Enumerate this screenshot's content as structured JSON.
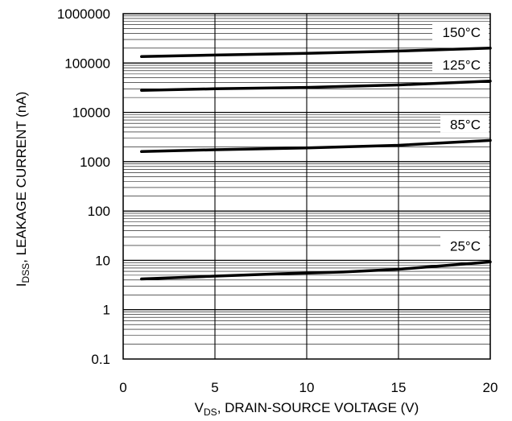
{
  "chart_data": {
    "type": "line",
    "title": "",
    "xlabel": {
      "main": "V",
      "sub": "DS",
      "rest": ", DRAIN-SOURCE VOLTAGE (V)"
    },
    "ylabel": {
      "main": "I",
      "sub": "DSS",
      "rest": ", LEAKAGE CURRENT (nA)"
    },
    "xlim": [
      0,
      20
    ],
    "ylim": [
      0.1,
      1000000
    ],
    "yscale": "log",
    "grid": true,
    "x_ticks": [
      0,
      5,
      10,
      15,
      20
    ],
    "x_tick_labels": [
      "0",
      "5",
      "10",
      "15",
      "20"
    ],
    "y_ticks": [
      0.1,
      1,
      10,
      100,
      1000,
      10000,
      100000,
      1000000
    ],
    "y_tick_labels": [
      "0.1",
      "1",
      "10",
      "100",
      "1000",
      "10000",
      "100000",
      "1000000"
    ],
    "legend": "labels on curves",
    "series": [
      {
        "name": "150°C",
        "x": [
          1,
          5,
          10,
          15,
          20
        ],
        "values": [
          135000,
          145000,
          157000,
          175000,
          200000
        ]
      },
      {
        "name": "125°C",
        "x": [
          1,
          5,
          10,
          15,
          20
        ],
        "values": [
          28000,
          30000,
          32000,
          36000,
          43000
        ]
      },
      {
        "name": "85°C",
        "x": [
          1,
          5,
          10,
          15,
          20
        ],
        "values": [
          1600,
          1750,
          1900,
          2150,
          2700
        ]
      },
      {
        "name": "25°C",
        "x": [
          1,
          5,
          9,
          10,
          12,
          15,
          20
        ],
        "values": [
          4.2,
          4.8,
          5.4,
          5.5,
          5.8,
          6.6,
          9.3
        ]
      }
    ]
  }
}
